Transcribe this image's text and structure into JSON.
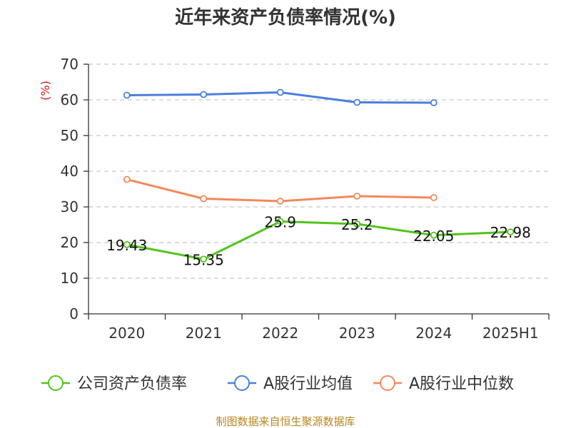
{
  "source_note": "制图数据来自恒生聚源数据库",
  "colors": {
    "company": "#52c41a",
    "industry_avg": "#4a7fdc",
    "industry_median": "#f2895a",
    "axis": "#333333",
    "grid": "#c8c8c8",
    "source": "#b8861f"
  },
  "chart_data": {
    "type": "line",
    "title": "近年来资产负债率情况(%)",
    "xlabel": "",
    "ylabel": "(%)",
    "categories": [
      "2020",
      "2021",
      "2022",
      "2023",
      "2024",
      "2025H1"
    ],
    "ylim": [
      0,
      70
    ],
    "yticks": [
      "0",
      "10",
      "20",
      "30",
      "40",
      "50",
      "60",
      "70"
    ],
    "grid": true,
    "legend_position": "bottom",
    "series": [
      {
        "name": "公司资产负债率",
        "values": [
          19.43,
          15.35,
          25.9,
          25.2,
          22.05,
          22.98
        ],
        "labels": [
          "19.43",
          "15.35",
          "25.9",
          "25.2",
          "22.05",
          "22.98"
        ],
        "color": "#52c41a"
      },
      {
        "name": "A股行业均值",
        "values": [
          61.3,
          61.5,
          62.1,
          59.3,
          59.2,
          null
        ],
        "color": "#4a7fdc"
      },
      {
        "name": "A股行业中位数",
        "values": [
          37.7,
          32.3,
          31.6,
          33.0,
          32.6,
          null
        ],
        "color": "#f2895a"
      }
    ]
  }
}
